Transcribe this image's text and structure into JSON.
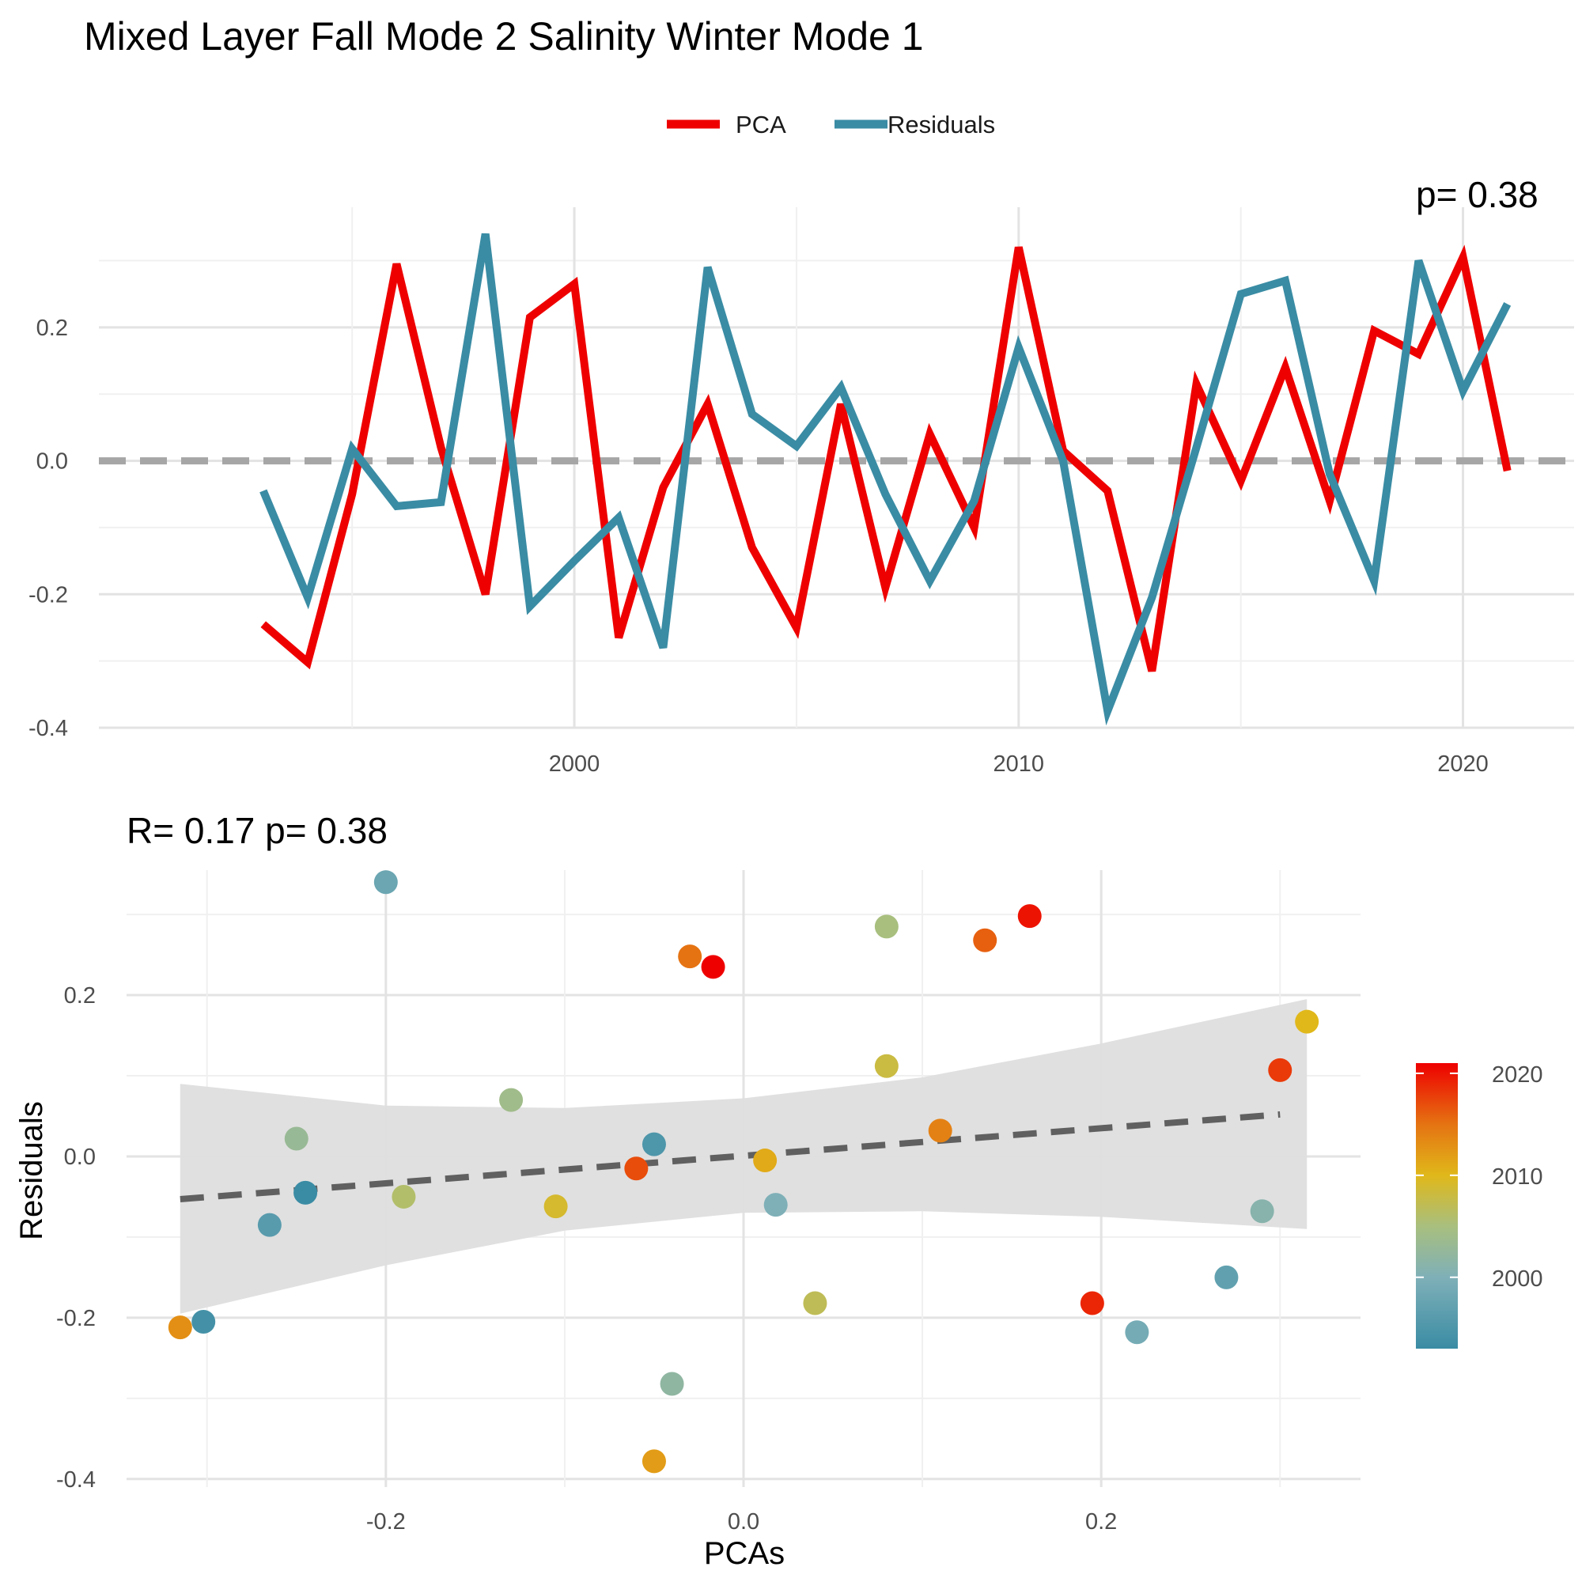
{
  "title": "Mixed Layer Fall Mode 2 Salinity Winter Mode 1",
  "colors": {
    "pca": "#EE0000",
    "residuals": "#3A8CA4",
    "zero_line": "#A6A6A6",
    "fit_line": "#606060",
    "ribbon": "#DEDEDE"
  },
  "chart_data": [
    {
      "type": "line",
      "legend": {
        "position": "top",
        "entries": [
          "PCA",
          "Residuals"
        ]
      },
      "corner_label": "p= 0.38",
      "x": [
        1993,
        1994,
        1995,
        1996,
        1997,
        1998,
        1999,
        2000,
        2001,
        2002,
        2003,
        2004,
        2005,
        2006,
        2007,
        2008,
        2009,
        2010,
        2011,
        2012,
        2013,
        2014,
        2015,
        2016,
        2017,
        2018,
        2019,
        2020,
        2021
      ],
      "series": [
        {
          "name": "PCA",
          "values": [
            -0.245,
            -0.302,
            -0.05,
            0.295,
            0.02,
            -0.2,
            0.215,
            0.265,
            -0.265,
            -0.04,
            0.085,
            -0.13,
            -0.25,
            0.085,
            -0.19,
            0.04,
            -0.1,
            0.32,
            0.015,
            -0.045,
            -0.315,
            0.115,
            -0.03,
            0.14,
            -0.06,
            0.195,
            0.16,
            0.305,
            -0.015
          ]
        },
        {
          "name": "Residuals",
          "values": [
            -0.045,
            -0.205,
            0.018,
            -0.068,
            -0.062,
            0.34,
            -0.218,
            -0.15,
            -0.085,
            -0.28,
            0.29,
            0.07,
            0.022,
            0.11,
            -0.05,
            -0.18,
            -0.06,
            0.17,
            0.0,
            -0.375,
            -0.205,
            0.02,
            0.25,
            0.27,
            -0.02,
            -0.18,
            0.3,
            0.105,
            0.235
          ]
        }
      ],
      "xlim": [
        1989.3,
        2022.5
      ],
      "ylim": [
        -0.4,
        0.38
      ],
      "x_ticks": [
        2000,
        2010,
        2020
      ],
      "y_ticks": [
        -0.4,
        -0.2,
        0.0,
        0.2
      ],
      "y_tick_labels": [
        "-0.4",
        "-0.2",
        "0.0",
        "0.2"
      ],
      "x_tick_labels": [
        "2000",
        "2010",
        "2020"
      ],
      "hline": 0,
      "grid": true
    },
    {
      "type": "scatter",
      "stat_label": "R= 0.17  p= 0.38",
      "xlabel": "PCAs",
      "ylabel": "Residuals",
      "xlim": [
        -0.345,
        0.345
      ],
      "ylim": [
        -0.41,
        0.355
      ],
      "x_ticks": [
        -0.2,
        0.0,
        0.2
      ],
      "x_tick_labels": [
        "-0.2",
        "0.0",
        "0.2"
      ],
      "y_ticks": [
        -0.4,
        -0.2,
        0.0,
        0.2
      ],
      "y_tick_labels": [
        "-0.4",
        "-0.2",
        "0.0",
        "0.2"
      ],
      "points": [
        {
          "year": 1993,
          "x": -0.245,
          "y": -0.045
        },
        {
          "year": 1994,
          "x": -0.302,
          "y": -0.205
        },
        {
          "year": 1995,
          "x": -0.05,
          "y": 0.015
        },
        {
          "year": 1996,
          "x": -0.265,
          "y": -0.085
        },
        {
          "year": 1997,
          "x": 0.27,
          "y": -0.15
        },
        {
          "year": 1998,
          "x": -0.2,
          "y": 0.34
        },
        {
          "year": 1999,
          "x": 0.22,
          "y": -0.218
        },
        {
          "year": 2000,
          "x": 0.018,
          "y": -0.06
        },
        {
          "year": 2001,
          "x": 0.29,
          "y": -0.068
        },
        {
          "year": 2002,
          "x": -0.04,
          "y": -0.282
        },
        {
          "year": 2003,
          "x": -0.25,
          "y": 0.022
        },
        {
          "year": 2004,
          "x": -0.13,
          "y": 0.07
        },
        {
          "year": 2005,
          "x": 0.08,
          "y": 0.285
        },
        {
          "year": 2006,
          "x": -0.19,
          "y": -0.05
        },
        {
          "year": 2007,
          "x": 0.04,
          "y": -0.182
        },
        {
          "year": 2008,
          "x": 0.08,
          "y": 0.112
        },
        {
          "year": 2009,
          "x": -0.105,
          "y": -0.062
        },
        {
          "year": 2010,
          "x": 0.315,
          "y": 0.167
        },
        {
          "year": 2011,
          "x": 0.012,
          "y": -0.005
        },
        {
          "year": 2012,
          "x": -0.05,
          "y": -0.378
        },
        {
          "year": 2013,
          "x": -0.315,
          "y": -0.212
        },
        {
          "year": 2014,
          "x": 0.11,
          "y": 0.032
        },
        {
          "year": 2015,
          "x": -0.03,
          "y": 0.248
        },
        {
          "year": 2016,
          "x": 0.135,
          "y": 0.268
        },
        {
          "year": 2017,
          "x": -0.06,
          "y": -0.015
        },
        {
          "year": 2018,
          "x": 0.3,
          "y": 0.107
        },
        {
          "year": 2019,
          "x": 0.195,
          "y": -0.182
        },
        {
          "year": 2020,
          "x": 0.16,
          "y": 0.298
        },
        {
          "year": 2021,
          "x": -0.017,
          "y": 0.235
        }
      ],
      "fit": {
        "x": [
          -0.315,
          0.3
        ],
        "y": [
          -0.053,
          0.052
        ],
        "style": "dashed"
      },
      "ribbon": {
        "x": [
          -0.315,
          -0.2,
          -0.1,
          0.0,
          0.1,
          0.2,
          0.315
        ],
        "upper": [
          0.09,
          0.063,
          0.06,
          0.072,
          0.098,
          0.14,
          0.195
        ],
        "lower": [
          -0.195,
          -0.135,
          -0.092,
          -0.07,
          -0.068,
          -0.075,
          -0.09
        ]
      },
      "colorbar": {
        "ticks": [
          2000,
          2010,
          2020
        ],
        "tick_labels": [
          "2000",
          "2010",
          "2020"
        ],
        "range": [
          1993,
          2021
        ],
        "stops": [
          {
            "year": 1993,
            "color": "#3A8CA4"
          },
          {
            "year": 2000,
            "color": "#7FB0B8"
          },
          {
            "year": 2005,
            "color": "#A8BF7E"
          },
          {
            "year": 2010,
            "color": "#E0B81A"
          },
          {
            "year": 2015,
            "color": "#E57312"
          },
          {
            "year": 2021,
            "color": "#EE0000"
          }
        ]
      }
    }
  ]
}
